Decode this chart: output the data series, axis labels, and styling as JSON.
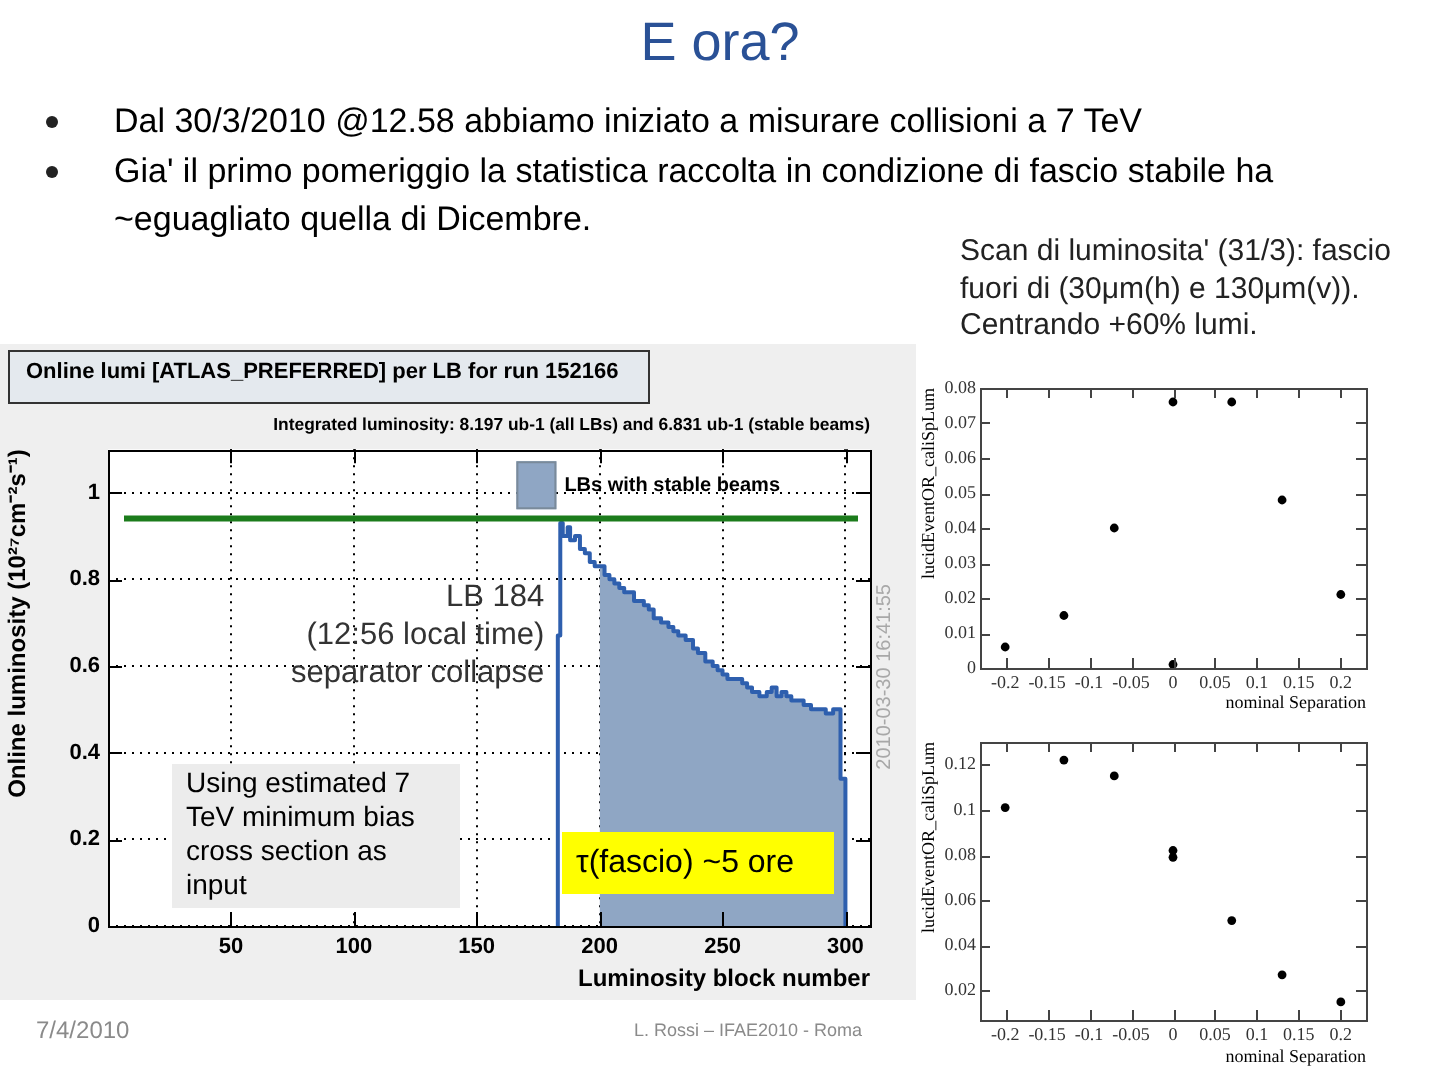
{
  "chart_data": [
    {
      "type": "step",
      "title": "Online lumi [ATLAS_PREFERRED] per LB for run 152166",
      "subtitle": "Integrated luminosity: 8.197 ub-1 (all LBs) and 6.831 ub-1 (stable beams)",
      "xlabel": "Luminosity block number",
      "ylabel": "Online luminosity (10²⁷cm⁻²s⁻¹)",
      "xlim": [
        0,
        310
      ],
      "xticks": [
        50,
        100,
        150,
        200,
        250,
        300
      ],
      "ylim": [
        0,
        1.1
      ],
      "yticks": [
        0,
        0.2,
        0.4,
        0.6,
        0.8,
        1
      ],
      "grid": true,
      "legend": "top right",
      "series": [
        {
          "color": "#2e5fae",
          "x": [
            183,
            184,
            185,
            187,
            188,
            190,
            192,
            194,
            196,
            198,
            200,
            202,
            204,
            206,
            208,
            210,
            212,
            214,
            216,
            218,
            220,
            222,
            225,
            228,
            230,
            232,
            235,
            238,
            240,
            243,
            246,
            248,
            250,
            252,
            255,
            258,
            260,
            262,
            265,
            268,
            270,
            272,
            274,
            276,
            278,
            280,
            283,
            286,
            289,
            292,
            295,
            298,
            300,
            301
          ],
          "values": [
            0,
            0.67,
            0.93,
            0.9,
            0.92,
            0.89,
            0.9,
            0.87,
            0.86,
            0.84,
            0.83,
            0.83,
            0.81,
            0.8,
            0.79,
            0.78,
            0.77,
            0.77,
            0.75,
            0.75,
            0.74,
            0.73,
            0.71,
            0.7,
            0.69,
            0.68,
            0.67,
            0.66,
            0.64,
            0.63,
            0.61,
            0.6,
            0.59,
            0.58,
            0.57,
            0.57,
            0.56,
            0.55,
            0.54,
            0.53,
            0.54,
            0.55,
            0.53,
            0.54,
            0.53,
            0.52,
            0.52,
            0.51,
            0.5,
            0.5,
            0.49,
            0.5,
            0.34,
            0
          ]
        },
        {
          "type": "area",
          "name": "LBs with stable beams",
          "color": "#8fa6c4",
          "x": [
            200,
            202,
            204,
            206,
            208,
            210,
            212,
            214,
            216,
            218,
            220,
            222,
            225,
            228,
            230,
            232,
            235,
            238,
            240,
            243,
            246,
            248,
            250,
            252,
            255,
            258,
            260,
            262,
            265,
            268,
            270,
            272,
            274,
            276,
            278,
            280,
            283,
            286,
            289,
            292,
            295,
            298,
            300,
            301
          ],
          "values": [
            0.83,
            0.83,
            0.81,
            0.8,
            0.79,
            0.78,
            0.77,
            0.77,
            0.75,
            0.75,
            0.74,
            0.73,
            0.71,
            0.7,
            0.69,
            0.68,
            0.67,
            0.66,
            0.64,
            0.63,
            0.61,
            0.6,
            0.59,
            0.58,
            0.57,
            0.57,
            0.56,
            0.55,
            0.54,
            0.53,
            0.54,
            0.55,
            0.53,
            0.54,
            0.53,
            0.52,
            0.52,
            0.51,
            0.5,
            0.5,
            0.49,
            0.5,
            0.34,
            0
          ]
        }
      ],
      "ref_lines": [
        {
          "axis": "y",
          "value": 0.94,
          "color": "#1c7c1c"
        }
      ],
      "annotations": [
        "E ora?",
        "Dal 30/3/2010 @12.58 abbiamo iniziato a misurare collisioni a 7 TeV",
        "Gia' il primo pomeriggio la statistica raccolta in condizione di fascio stabile ha ~eguagliato quella di Dicembre.",
        {
          "text": "LB 184\n(12:56 local time)\nseparator collapse",
          "x": 184,
          "y": 0.67
        },
        "Using estimated 7 TeV minimum bias cross section as input",
        "τ(fascio) ~5 ore",
        "2010-03-30 16:41:55",
        "7/4/2010",
        "L. Rossi – IFAE2010 - Roma"
      ]
    },
    {
      "type": "scatter",
      "xlabel": "nominal Separation",
      "ylabel": "lucidEventOR_caliSpLum",
      "xlim": [
        -0.23,
        0.23
      ],
      "xticks": [
        -0.2,
        -0.15,
        -0.1,
        -0.05,
        0,
        0.05,
        0.1,
        0.15,
        0.2
      ],
      "ylim": [
        0,
        0.08
      ],
      "yticks": [
        0,
        0.01,
        0.02,
        0.03,
        0.04,
        0.05,
        0.06,
        0.07,
        0.08
      ],
      "x": [
        -0.2,
        -0.13,
        -0.07,
        0,
        0,
        0.07,
        0.13,
        0.2
      ],
      "values": [
        0.006,
        0.015,
        0.04,
        0.076,
        0.001,
        0.076,
        0.048,
        0.021
      ],
      "color": "#000000",
      "marker": "circle",
      "annotations": [
        "Scan di luminosita' (31/3): fascio fuori di (30μm(h) e 130μm(v)). Centrando +60% lumi."
      ]
    },
    {
      "type": "scatter",
      "xlabel": "nominal Separation",
      "ylabel": "lucidEventOR_caliSpLum",
      "xlim": [
        -0.23,
        0.23
      ],
      "xticks": [
        -0.2,
        -0.15,
        -0.1,
        -0.05,
        0,
        0.05,
        0.1,
        0.15,
        0.2
      ],
      "ylim": [
        0.007,
        0.13
      ],
      "yticks": [
        0.02,
        0.04,
        0.06,
        0.08,
        0.1,
        0.12
      ],
      "x": [
        -0.2,
        -0.13,
        -0.07,
        0,
        0,
        0.07,
        0.13,
        0.2
      ],
      "values": [
        0.101,
        0.122,
        0.115,
        0.082,
        0.079,
        0.051,
        0.027,
        0.015
      ],
      "color": "#000000",
      "marker": "circle"
    }
  ]
}
